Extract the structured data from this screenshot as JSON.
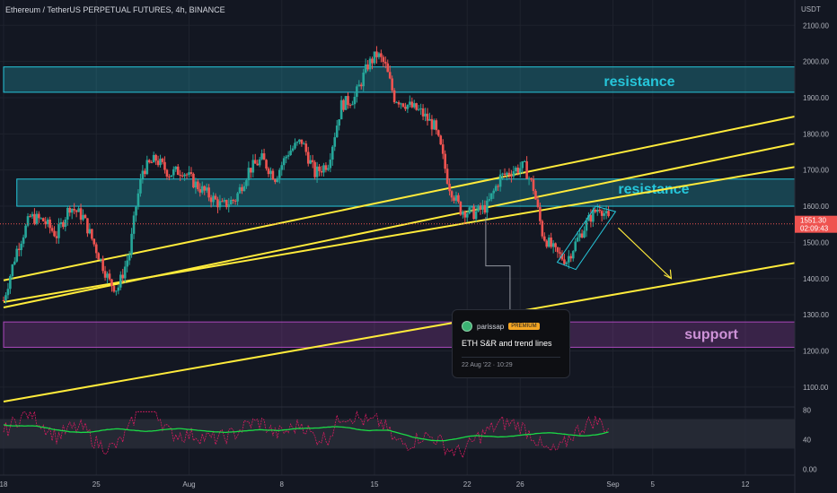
{
  "chart_title": "Ethereum / TetherUS PERPETUAL FUTURES, 4h, BINANCE",
  "chart_data": {
    "type": "candlestick",
    "price_axis": {
      "unit": "USDT",
      "range": [
        1050,
        2170
      ],
      "ticks": [
        "2100.00",
        "2000.00",
        "1900.00",
        "1800.00",
        "1700.00",
        "1600.00",
        "1500.00",
        "1400.00",
        "1300.00",
        "1200.00",
        "1100.00"
      ],
      "tick_values": [
        2100,
        2000,
        1900,
        1800,
        1700,
        1600,
        1500,
        1400,
        1300,
        1200,
        1100
      ]
    },
    "time_axis": {
      "ticks": [
        "18",
        "25",
        "Aug",
        "8",
        "15",
        "22",
        "26",
        "Sep",
        "5",
        "12"
      ],
      "tick_days": [
        0,
        7,
        14,
        21,
        28,
        35,
        39,
        46,
        49,
        56
      ],
      "range_days": [
        0,
        60
      ]
    },
    "price_path": [
      {
        "d": 0,
        "p": 1340
      },
      {
        "d": 1,
        "p": 1480
      },
      {
        "d": 2,
        "p": 1570
      },
      {
        "d": 3,
        "p": 1560
      },
      {
        "d": 4,
        "p": 1520
      },
      {
        "d": 5,
        "p": 1600
      },
      {
        "d": 6,
        "p": 1570
      },
      {
        "d": 7,
        "p": 1480
      },
      {
        "d": 8,
        "p": 1390
      },
      {
        "d": 8.6,
        "p": 1370
      },
      {
        "d": 9.5,
        "p": 1470
      },
      {
        "d": 10,
        "p": 1600
      },
      {
        "d": 10.5,
        "p": 1700
      },
      {
        "d": 11.5,
        "p": 1730
      },
      {
        "d": 12.5,
        "p": 1690
      },
      {
        "d": 13.5,
        "p": 1700
      },
      {
        "d": 14.5,
        "p": 1660
      },
      {
        "d": 15.5,
        "p": 1630
      },
      {
        "d": 16.5,
        "p": 1600
      },
      {
        "d": 17.5,
        "p": 1620
      },
      {
        "d": 18.5,
        "p": 1700
      },
      {
        "d": 19.5,
        "p": 1730
      },
      {
        "d": 20.5,
        "p": 1680
      },
      {
        "d": 21.5,
        "p": 1750
      },
      {
        "d": 22.5,
        "p": 1780
      },
      {
        "d": 23.5,
        "p": 1690
      },
      {
        "d": 24.5,
        "p": 1720
      },
      {
        "d": 25.5,
        "p": 1880
      },
      {
        "d": 26.5,
        "p": 1900
      },
      {
        "d": 27.5,
        "p": 1990
      },
      {
        "d": 28.2,
        "p": 2020
      },
      {
        "d": 28.8,
        "p": 1990
      },
      {
        "d": 29.5,
        "p": 1900
      },
      {
        "d": 30.5,
        "p": 1880
      },
      {
        "d": 31.5,
        "p": 1860
      },
      {
        "d": 32.5,
        "p": 1820
      },
      {
        "d": 33,
        "p": 1760
      },
      {
        "d": 33.6,
        "p": 1660
      },
      {
        "d": 34.5,
        "p": 1590
      },
      {
        "d": 35.5,
        "p": 1580
      },
      {
        "d": 36.5,
        "p": 1600
      },
      {
        "d": 37.5,
        "p": 1680
      },
      {
        "d": 38.5,
        "p": 1700
      },
      {
        "d": 39.3,
        "p": 1710
      },
      {
        "d": 40,
        "p": 1650
      },
      {
        "d": 40.7,
        "p": 1520
      },
      {
        "d": 41.7,
        "p": 1470
      },
      {
        "d": 42.5,
        "p": 1450
      },
      {
        "d": 43.5,
        "p": 1520
      },
      {
        "d": 44.3,
        "p": 1570
      },
      {
        "d": 45,
        "p": 1600
      },
      {
        "d": 45.7,
        "p": 1560
      }
    ],
    "last_price": "1551.30",
    "countdown": "02:09:43",
    "zones": [
      {
        "label": "resistance",
        "bottom": 1915,
        "top": 1985,
        "from_day": 0,
        "to_day": 60,
        "color": "#26c6da"
      },
      {
        "label": "resistance",
        "bottom": 1600,
        "top": 1675,
        "from_day": 1,
        "to_day": 60,
        "color": "#26c6da"
      },
      {
        "label": "support",
        "bottom": 1210,
        "top": 1280,
        "from_day": 0,
        "to_day": 60,
        "color": "#ab47bc"
      }
    ],
    "trend_lines": [
      {
        "from": {
          "d": 0,
          "p": 1395
        },
        "to": {
          "d": 60,
          "p": 1850
        }
      },
      {
        "from": {
          "d": 0,
          "p": 1320
        },
        "to": {
          "d": 60,
          "p": 1775
        }
      },
      {
        "from": {
          "d": 0,
          "p": 1335
        },
        "to": {
          "d": 60,
          "p": 1710
        }
      },
      {
        "from": {
          "d": 0,
          "p": 1060
        },
        "to": {
          "d": 60,
          "p": 1445
        }
      }
    ],
    "oscillator": {
      "range": [
        -8,
        82
      ],
      "ticks": [
        "80",
        "40",
        "0.00"
      ],
      "tick_values": [
        80,
        40,
        0
      ],
      "band": [
        28,
        68
      ]
    }
  },
  "tooltip": {
    "user": "parissap",
    "badge": "PREMIUM",
    "headline": "ETH S&R and trend lines",
    "date": "22 Aug '22 · 10:29"
  },
  "colors": {
    "background": "#131722",
    "up": "#26a69a",
    "down": "#ef5350",
    "trend": "#ffeb3b",
    "resistance_text": "#26c6da",
    "support_text": "#ce93d8",
    "oscillator": "#1bd946"
  }
}
